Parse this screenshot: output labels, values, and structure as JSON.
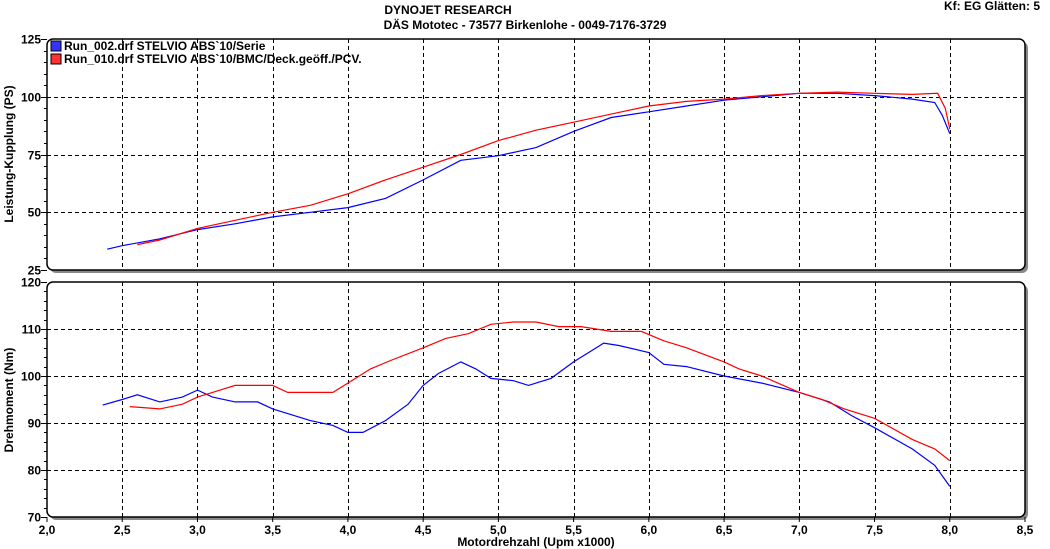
{
  "header": {
    "title": "DYNOJET RESEARCH",
    "subtitle": "DÄS Mototec - 73577 Birkenlohe  - 0049-7176-3729",
    "settings": "Kf: EG  Glätten: 5"
  },
  "chart_data": [
    {
      "type": "line",
      "title": "",
      "xlabel": "Motordrehzahl (Upm x1000)",
      "ylabel": "Leistung-Kupplung (PS)",
      "xlim": [
        2.0,
        8.5
      ],
      "ylim": [
        25,
        125
      ],
      "yticks": [
        "25",
        "50",
        "75",
        "100",
        "125"
      ],
      "grid": true,
      "legend": "top-left",
      "series": [
        {
          "name": "Run_002.drf STELVIO ABS`10/Serie",
          "color": "#0000ff",
          "x": [
            2.4,
            2.5,
            2.75,
            3.0,
            3.25,
            3.5,
            3.75,
            4.0,
            4.25,
            4.5,
            4.75,
            5.0,
            5.25,
            5.5,
            5.75,
            6.0,
            6.25,
            6.5,
            6.75,
            7.0,
            7.25,
            7.5,
            7.75,
            7.9,
            7.95,
            8.0
          ],
          "y": [
            34,
            35.5,
            38.5,
            42.5,
            45,
            48,
            50,
            52,
            56,
            64,
            72.5,
            74.5,
            78,
            85,
            91,
            93.5,
            96,
            98.5,
            100,
            101.5,
            101.5,
            100.5,
            99,
            97.5,
            92,
            84
          ]
        },
        {
          "name": "Run_010.drf STELVIO ABS`10/BMC/Deck.geöff./PCV.",
          "color": "#ff0000",
          "x": [
            2.6,
            2.75,
            3.0,
            3.25,
            3.5,
            3.75,
            4.0,
            4.25,
            4.5,
            4.75,
            5.0,
            5.25,
            5.5,
            5.75,
            6.0,
            6.25,
            6.5,
            6.75,
            7.0,
            7.25,
            7.5,
            7.75,
            7.92,
            7.97,
            8.0
          ],
          "y": [
            36,
            38,
            43,
            46.5,
            50,
            53,
            58,
            64,
            69.5,
            75,
            81,
            85.5,
            89,
            92.5,
            96,
            98,
            99,
            100.5,
            101.5,
            102,
            101.5,
            101,
            101.5,
            95,
            86
          ]
        }
      ]
    },
    {
      "type": "line",
      "title": "",
      "xlabel": "Motordrehzahl (Upm x1000)",
      "ylabel": "Drehmoment (Nm)",
      "xlim": [
        2.0,
        8.5
      ],
      "ylim": [
        70,
        120
      ],
      "xticks": [
        "2,0",
        "2,5",
        "3,0",
        "3,5",
        "4,0",
        "4,5",
        "5,0",
        "5,5",
        "6,0",
        "6,5",
        "7,0",
        "7,5",
        "8,0",
        "8,5"
      ],
      "yticks": [
        "70",
        "80",
        "90",
        "100",
        "110",
        "120"
      ],
      "grid": true,
      "series": [
        {
          "name": "Run_002.drf STELVIO ABS`10/Serie",
          "color": "#0000ff",
          "x": [
            2.37,
            2.5,
            2.6,
            2.75,
            2.9,
            3.0,
            3.1,
            3.25,
            3.4,
            3.5,
            3.75,
            3.9,
            4.0,
            4.1,
            4.25,
            4.4,
            4.5,
            4.6,
            4.75,
            4.85,
            4.95,
            5.1,
            5.2,
            5.35,
            5.5,
            5.6,
            5.7,
            5.8,
            6.0,
            6.1,
            6.25,
            6.5,
            6.75,
            7.0,
            7.2,
            7.35,
            7.5,
            7.75,
            7.9,
            8.0
          ],
          "y": [
            93.8,
            95,
            96,
            94.5,
            95.5,
            97,
            95.5,
            94.5,
            94.5,
            93,
            90.5,
            89.5,
            88,
            88,
            90.5,
            94,
            98,
            100.5,
            103,
            101.5,
            99.5,
            99,
            98,
            99.5,
            103,
            105,
            107,
            106.5,
            105,
            102.5,
            102,
            100,
            98.5,
            96.5,
            94.5,
            91.5,
            89,
            84.5,
            81,
            76.5
          ]
        },
        {
          "name": "Run_010.drf STELVIO ABS`10/BMC/Deck.geöff./PCV.",
          "color": "#ff0000",
          "x": [
            2.55,
            2.75,
            2.9,
            3.0,
            3.1,
            3.25,
            3.5,
            3.6,
            3.75,
            3.9,
            4.0,
            4.15,
            4.3,
            4.5,
            4.65,
            4.8,
            4.95,
            5.1,
            5.25,
            5.4,
            5.55,
            5.75,
            5.95,
            6.1,
            6.25,
            6.5,
            6.6,
            6.75,
            7.0,
            7.15,
            7.3,
            7.5,
            7.75,
            7.9,
            8.0
          ],
          "y": [
            93.5,
            93,
            94,
            95.5,
            96.5,
            98,
            98,
            96.5,
            96.5,
            96.5,
            98.5,
            101.5,
            103.5,
            106,
            108,
            109,
            111,
            111.5,
            111.5,
            110.5,
            110.5,
            109.5,
            109.5,
            107.5,
            106,
            103,
            101.5,
            100,
            96.5,
            95,
            93,
            91,
            86.5,
            84.5,
            82
          ]
        }
      ]
    }
  ]
}
